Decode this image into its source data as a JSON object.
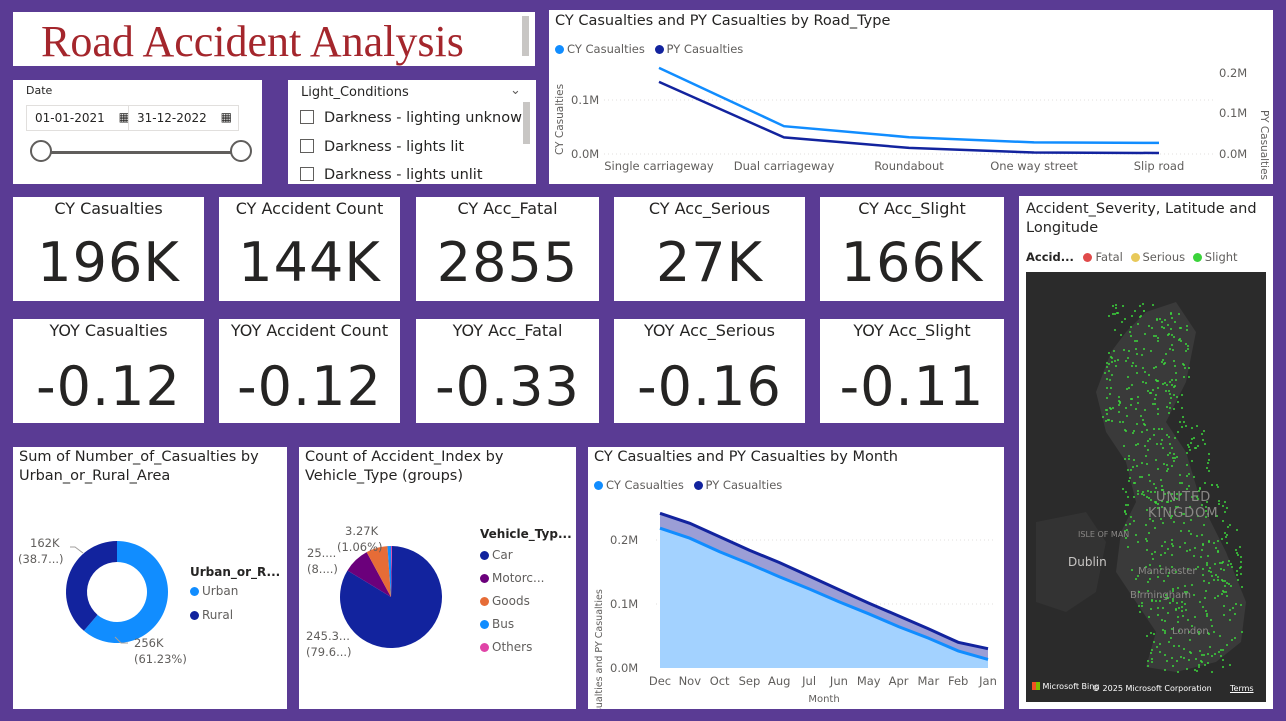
{
  "title": "Road Accident Analysis",
  "date_slicer": {
    "label": "Date",
    "start": "01-01-2021",
    "end": "31-12-2022"
  },
  "light_slicer": {
    "label": "Light_Conditions",
    "items": [
      "Darkness - lighting unknown",
      "Darkness - lights lit",
      "Darkness - lights unlit"
    ]
  },
  "road_chart": {
    "title": "CY Casualties and PY Casualties by Road_Type",
    "legend": [
      {
        "name": "CY Casualties",
        "color": "#118dff"
      },
      {
        "name": "PY Casualties",
        "color": "#12239e"
      }
    ],
    "ylabel_left": "CY Casualties",
    "ylabel_right": "PY Casualties",
    "left_ticks": [
      "0.1M",
      "0.0M"
    ],
    "right_ticks": [
      "0.2M",
      "0.1M",
      "0.0M"
    ]
  },
  "kpis": [
    {
      "label": "CY Casualties",
      "value": "196K"
    },
    {
      "label": "CY Accident Count",
      "value": "144K"
    },
    {
      "label": "CY Acc_Fatal",
      "value": "2855"
    },
    {
      "label": "CY Acc_Serious",
      "value": "27K"
    },
    {
      "label": "CY Acc_Slight",
      "value": "166K"
    },
    {
      "label": "YOY Casualties",
      "value": "-0.12"
    },
    {
      "label": "YOY Accident Count",
      "value": "-0.12"
    },
    {
      "label": "YOY Acc_Fatal",
      "value": "-0.33"
    },
    {
      "label": "YOY Acc_Serious",
      "value": "-0.16"
    },
    {
      "label": "YOY Acc_Slight",
      "value": "-0.11"
    }
  ],
  "map": {
    "title": "Accident_Severity, Latitude and Longitude",
    "legend_title": "Accid...",
    "legend": [
      {
        "name": "Fatal",
        "color": "#e04a4a"
      },
      {
        "name": "Serious",
        "color": "#e8c95a"
      },
      {
        "name": "Slight",
        "color": "#3bd33b"
      }
    ],
    "labels": [
      "UNITED",
      "KINGDOM",
      "ISLE OF MAN",
      "Dublin",
      "Manchester",
      "Birmingham",
      "London"
    ],
    "footer": "Microsoft Bing",
    "copyright": "© 2025 Microsoft Corporation",
    "terms": "Terms"
  },
  "donut": {
    "title_line1": "Sum of Number_of_Casualties by",
    "title_line2": "Urban_or_Rural_Area",
    "legend_title": "Urban_or_R...",
    "rural_label1": "162K",
    "rural_label2": "(38.7...)",
    "urban_label1": "256K",
    "urban_label2": "(61.23%)"
  },
  "pie": {
    "title_line1": "Count of Accident_Index by",
    "title_line2": "Vehicle_Type (groups)",
    "legend_title": "Vehicle_Typ...",
    "lbl_bus1": "3.27K",
    "lbl_bus2": "(1.06%)",
    "lbl_moto1": "25....",
    "lbl_moto2": "(8....)",
    "lbl_car1": "245.3...",
    "lbl_car2": "(79.6...)"
  },
  "month_chart": {
    "title": "CY Casualties and PY Casualties by Month",
    "xlabel": "Month",
    "ylabel": "CY Casualties and PY Casualties",
    "y_ticks": [
      "0.2M",
      "0.1M",
      "0.0M"
    ]
  },
  "chart_data": [
    {
      "type": "line",
      "title": "CY Casualties and PY Casualties by Road_Type",
      "categories": [
        "Single carriageway",
        "Dual carriageway",
        "Roundabout",
        "One way street",
        "Slip road"
      ],
      "series": [
        {
          "name": "CY Casualties",
          "values": [
            145000,
            34000,
            13000,
            3000,
            2000
          ]
        },
        {
          "name": "PY Casualties",
          "values": [
            165000,
            38000,
            14000,
            3500,
            2200
          ]
        }
      ],
      "ylabel": "CY Casualties",
      "y2label": "PY Casualties",
      "ylim": [
        0,
        160000
      ],
      "y2lim": [
        0,
        250000
      ]
    },
    {
      "type": "pie",
      "title": "Sum of Number_of_Casualties by Urban_or_Rural_Area",
      "categories": [
        "Urban",
        "Rural"
      ],
      "values": [
        256000,
        162000
      ],
      "colors": [
        "#118dff",
        "#12239e"
      ],
      "donut": true
    },
    {
      "type": "pie",
      "title": "Count of Accident_Index by Vehicle_Type (groups)",
      "categories": [
        "Car",
        "Motorc...",
        "Goods",
        "Bus",
        "Others"
      ],
      "values": [
        79.6,
        8.0,
        6.5,
        1.06,
        0.3
      ],
      "colors": [
        "#12239e",
        "#6b007b",
        "#e66c37",
        "#118dff",
        "#e044a7"
      ]
    },
    {
      "type": "area",
      "title": "CY Casualties and PY Casualties by Month",
      "categories": [
        "Dec",
        "Nov",
        "Oct",
        "Sep",
        "Aug",
        "Jul",
        "Jun",
        "May",
        "Apr",
        "Mar",
        "Feb",
        "Jan"
      ],
      "series": [
        {
          "name": "CY Casualties",
          "values": [
            196000,
            182000,
            163000,
            146000,
            128000,
            111000,
            93000,
            76000,
            58000,
            42000,
            24000,
            12000
          ]
        },
        {
          "name": "PY Casualties",
          "values": [
            217000,
            203000,
            184000,
            165000,
            148000,
            129000,
            110000,
            91000,
            73000,
            55000,
            36000,
            27000
          ]
        }
      ],
      "xlabel": "Month",
      "ylabel": "CY Casualties and PY Casualties",
      "ylim": [
        0,
        230000
      ]
    }
  ]
}
